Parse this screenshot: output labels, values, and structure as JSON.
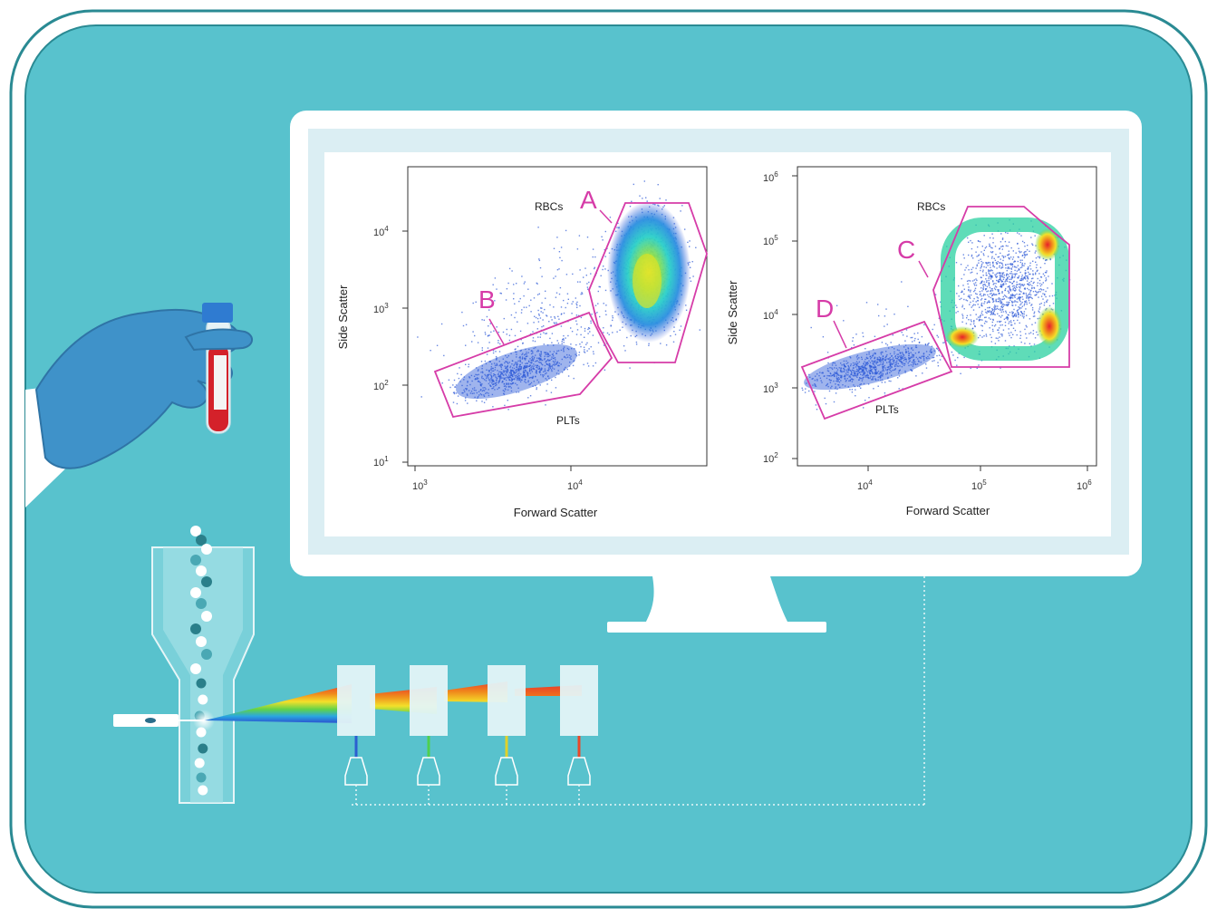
{
  "colors": {
    "background_panel": "#58c2cd",
    "panel_border": "#2a8a93",
    "monitor_frame": "#ffffff",
    "screen_bg": "#dbeef3",
    "gate_magenta": "#d63ca8",
    "glove": "#3f92c9",
    "glove_dark": "#2f74a6",
    "tube_cap": "#2f7bd1",
    "blood": "#d4212a"
  },
  "plots": [
    {
      "id": "left",
      "ylabel": "Side Scatter",
      "xlabel": "Forward Scatter",
      "xticks": [
        {
          "base": "10",
          "exp": "3"
        },
        {
          "base": "10",
          "exp": "4"
        }
      ],
      "yticks": [
        {
          "base": "10",
          "exp": "1"
        },
        {
          "base": "10",
          "exp": "2"
        },
        {
          "base": "10",
          "exp": "3"
        },
        {
          "base": "10",
          "exp": "4"
        }
      ],
      "populations": [
        {
          "label": "RBCs"
        },
        {
          "label": "PLTs"
        }
      ],
      "gates": [
        {
          "letter": "A"
        },
        {
          "letter": "B"
        }
      ]
    },
    {
      "id": "right",
      "ylabel": "Side Scatter",
      "xlabel": "Forward Scatter",
      "xticks": [
        {
          "base": "10",
          "exp": "4"
        },
        {
          "base": "10",
          "exp": "5"
        },
        {
          "base": "10",
          "exp": "6"
        }
      ],
      "yticks": [
        {
          "base": "10",
          "exp": "2"
        },
        {
          "base": "10",
          "exp": "3"
        },
        {
          "base": "10",
          "exp": "4"
        },
        {
          "base": "10",
          "exp": "5"
        },
        {
          "base": "10",
          "exp": "6"
        }
      ],
      "populations": [
        {
          "label": "RBCs"
        },
        {
          "label": "PLTs"
        }
      ],
      "gates": [
        {
          "letter": "C"
        },
        {
          "letter": "D"
        }
      ]
    }
  ],
  "filters": [
    {
      "color": "#2b5fd0"
    },
    {
      "color": "#4fd04f"
    },
    {
      "color": "#e0d12a"
    },
    {
      "color": "#e8482a"
    }
  ]
}
